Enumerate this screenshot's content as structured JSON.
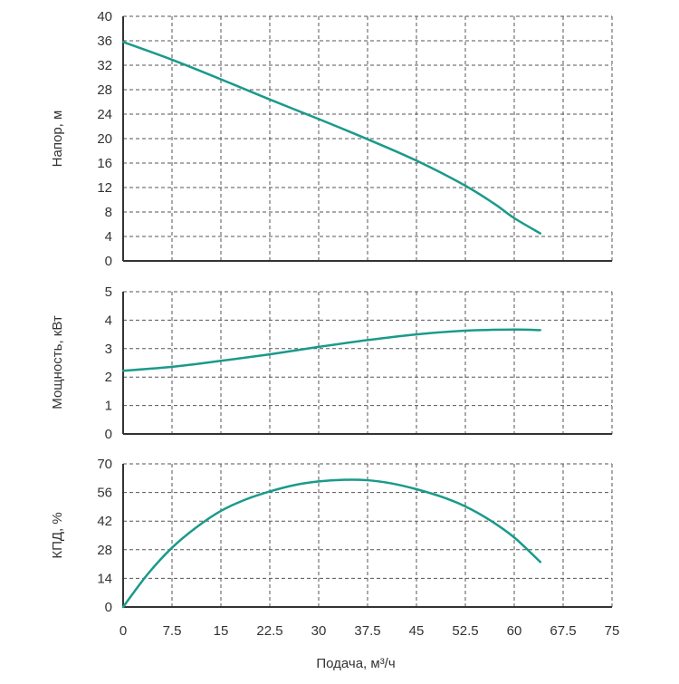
{
  "colors": {
    "series": "#1a9a8a",
    "grid": "#555555",
    "axis": "#333333",
    "text": "#333333"
  },
  "chart_data": [
    {
      "type": "line",
      "ylabel": "Напор, м",
      "xlabel": "",
      "xlim": [
        0,
        75
      ],
      "ylim": [
        0,
        40
      ],
      "grid": true,
      "x_ticks": [],
      "y_ticks": [
        "0",
        "4",
        "8",
        "12",
        "16",
        "20",
        "24",
        "28",
        "32",
        "36",
        "40"
      ],
      "series": [
        {
          "x": [
            0,
            7.5,
            15,
            22.5,
            30,
            37.5,
            45,
            52.5,
            57,
            60,
            64
          ],
          "values": [
            35.8,
            32.9,
            29.7,
            26.4,
            23.2,
            19.9,
            16.4,
            12.3,
            9.3,
            7.0,
            4.5
          ]
        }
      ]
    },
    {
      "type": "line",
      "ylabel": "Мощность, кВт",
      "xlabel": "",
      "xlim": [
        0,
        75
      ],
      "ylim": [
        0,
        5
      ],
      "grid": true,
      "x_ticks": [],
      "y_ticks": [
        "0",
        "1",
        "2",
        "3",
        "4",
        "5"
      ],
      "series": [
        {
          "x": [
            0,
            7.5,
            15,
            22.5,
            30,
            37.5,
            45,
            52.5,
            60,
            64
          ],
          "values": [
            2.22,
            2.36,
            2.57,
            2.8,
            3.06,
            3.3,
            3.5,
            3.63,
            3.67,
            3.65
          ]
        }
      ]
    },
    {
      "type": "line",
      "ylabel": "КПД, %",
      "xlabel": "Подача, м³/ч",
      "xlim": [
        0,
        75
      ],
      "ylim": [
        0,
        70
      ],
      "grid": true,
      "x_ticks": [
        "0",
        "7.5",
        "15",
        "22.5",
        "30",
        "37.5",
        "45",
        "52.5",
        "60",
        "67.5",
        "75"
      ],
      "y_ticks": [
        "0",
        "14",
        "28",
        "42",
        "56",
        "70"
      ],
      "series": [
        {
          "x": [
            0,
            3.75,
            7.5,
            11.25,
            15,
            18.75,
            22.5,
            26.25,
            30,
            33.75,
            37.5,
            41.25,
            45,
            48.75,
            52.5,
            56.25,
            60,
            64
          ],
          "values": [
            0,
            16,
            29,
            39,
            47,
            52.5,
            56.5,
            59.6,
            61.4,
            62.2,
            62,
            60.4,
            57.6,
            54,
            49.2,
            42.5,
            34,
            22
          ]
        }
      ]
    }
  ]
}
